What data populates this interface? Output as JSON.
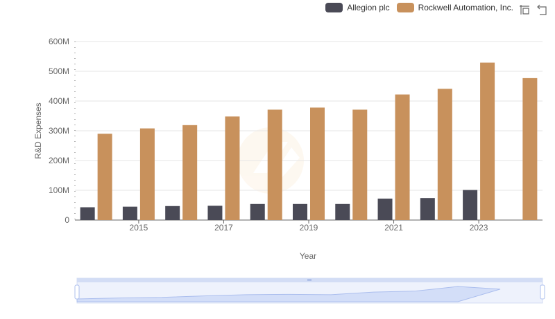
{
  "colors": {
    "series_0": "#4a4a56",
    "series_1": "#c8915c",
    "grid": "#e6e6e6",
    "axis": "#666666",
    "zoom_fill": "#dfe7fb",
    "zoom_border": "#aec0ee"
  },
  "legend": {
    "items": [
      "Allegion plc",
      "Rockwell Automation, Inc."
    ]
  },
  "toolbox": {
    "icons": [
      "zoom-icon",
      "restore-icon"
    ]
  },
  "chart_data": {
    "type": "bar",
    "title": "",
    "xlabel": "Year",
    "ylabel": "R&D Expenses",
    "x": [
      2014,
      2015,
      2016,
      2017,
      2018,
      2019,
      2020,
      2021,
      2022,
      2023,
      2024
    ],
    "x_tick_labels": [
      "2015",
      "2017",
      "2019",
      "2021",
      "2023"
    ],
    "y_tick_labels": [
      "0",
      "100M",
      "200M",
      "300M",
      "400M",
      "500M",
      "600M"
    ],
    "ylim": [
      0,
      600000000
    ],
    "grid": true,
    "legend_position": "top-right",
    "series": [
      {
        "name": "Allegion plc",
        "values": [
          43000000,
          45000000,
          47000000,
          48000000,
          54000000,
          54000000,
          54000000,
          72000000,
          74000000,
          101000000,
          null
        ]
      },
      {
        "name": "Rockwell Automation, Inc.",
        "values": [
          290000000,
          308000000,
          319000000,
          348000000,
          371000000,
          378000000,
          371000000,
          422000000,
          441000000,
          529000000,
          477000000
        ]
      }
    ]
  }
}
